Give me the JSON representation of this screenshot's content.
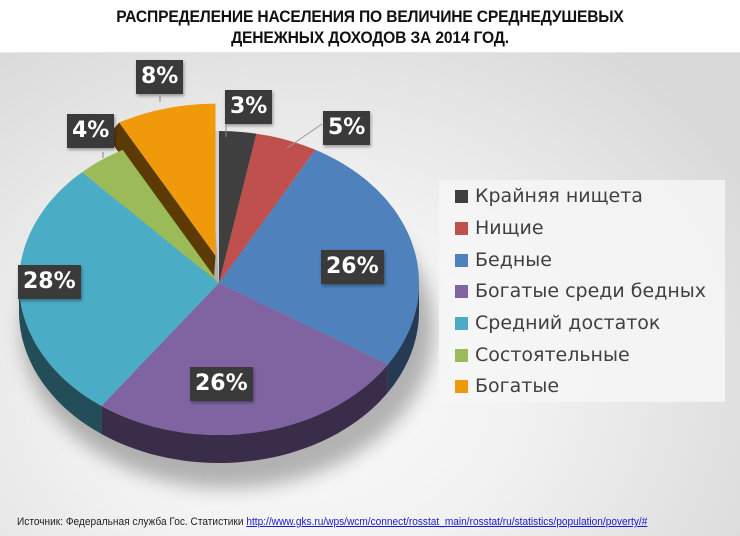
{
  "title_line1": "РАСПРЕДЕЛЕНИЕ НАСЕЛЕНИЯ ПО ВЕЛИЧИНЕ СРЕДНЕДУШЕВЫХ",
  "title_line2": "ДЕНЕЖНЫХ ДОХОДОВ ЗА 2014 ГОД.",
  "source": {
    "label": "Источник: Федеральная служба Гос. Статистики",
    "link": "http://www.gks.ru/wps/wcm/connect/rosstat_main/rosstat/ru/statistics/population/poverty/#"
  },
  "legend": [
    {
      "label": "Крайняя нищета",
      "color": "#3f3f3f"
    },
    {
      "label": "Нищие",
      "color": "#c0504d"
    },
    {
      "label": "Бедные",
      "color": "#4f81bd"
    },
    {
      "label": "Богатые среди бедных",
      "color": "#8064a2"
    },
    {
      "label": "Средний достаток",
      "color": "#4bacc6"
    },
    {
      "label": "Состоятельные",
      "color": "#9bbb59"
    },
    {
      "label": "Богатые",
      "color": "#f0990a"
    }
  ],
  "labels": {
    "extreme_poverty": "3%",
    "poor": "5%",
    "low_income": "26%",
    "rich_among_poor": "26%",
    "middle_income": "28%",
    "well_off": "4%",
    "rich": "8%"
  },
  "chart_data": {
    "type": "pie",
    "title": "РАСПРЕДЕЛЕНИЕ НАСЕЛЕНИЯ ПО ВЕЛИЧИНЕ СРЕДНЕДУШЕВЫХ ДЕНЕЖНЫХ ДОХОДОВ ЗА 2014 ГОД.",
    "style": "3d-exploded",
    "categories": [
      "Крайняя нищета",
      "Нищие",
      "Бедные",
      "Богатые среди бедных",
      "Средний достаток",
      "Состоятельные",
      "Богатые"
    ],
    "values": [
      3,
      5,
      26,
      26,
      28,
      4,
      8
    ],
    "unit": "%",
    "colors": [
      "#3f3f3f",
      "#c0504d",
      "#4f81bd",
      "#8064a2",
      "#4bacc6",
      "#9bbb59",
      "#f0990a"
    ],
    "exploded": [
      "Богатые"
    ],
    "legend_position": "right",
    "start_angle": "12 o'clock, clockwise"
  }
}
